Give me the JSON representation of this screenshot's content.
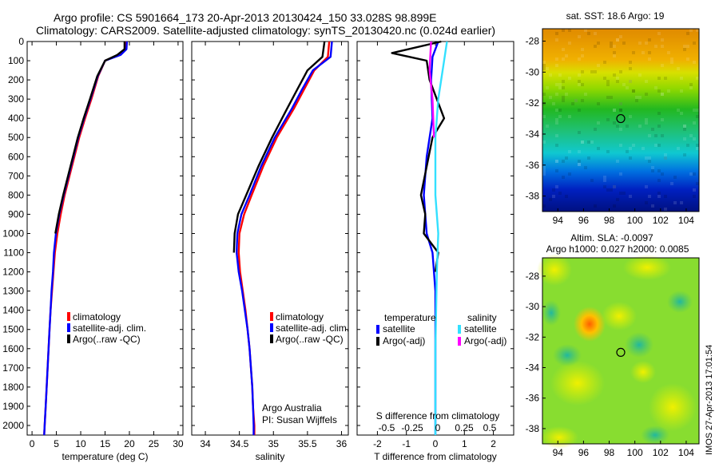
{
  "title": {
    "line1": "Argo profile: CS 5901664_173 20-Apr-2013 20130424_150 33.028S 98.899E",
    "line2": "Climatology: CARS2009. Satellite-adjusted climatology: synTS_20130420.nc (0.024d earlier)"
  },
  "colors": {
    "climatology": "#ff0000",
    "satellite": "#0000ff",
    "argo": "#000000",
    "salinity_satellite": "#33e0ff",
    "salinity_argo": "#ff00ff"
  },
  "chart_data": [
    {
      "type": "line",
      "xlabel": "temperature (deg C)",
      "ylabel": "",
      "xlim": [
        -1,
        31
      ],
      "ylim": [
        2050,
        0
      ],
      "y_ticks": [
        0,
        100,
        200,
        300,
        400,
        500,
        600,
        700,
        800,
        900,
        1000,
        1100,
        1200,
        1300,
        1400,
        1500,
        1600,
        1700,
        1800,
        1900,
        2000
      ],
      "x_ticks": [
        0,
        5,
        10,
        15,
        20,
        25,
        30
      ],
      "legend": [
        "climatology",
        "satellite-adj. clim.",
        "Argo(..raw -QC)"
      ],
      "legend_position": "lower-right",
      "series": [
        {
          "name": "climatology",
          "color": "#ff0000",
          "points": [
            [
              19.4,
              0
            ],
            [
              19.3,
              40
            ],
            [
              18.0,
              70
            ],
            [
              15.0,
              100
            ],
            [
              13.6,
              180
            ],
            [
              12.2,
              300
            ],
            [
              10.9,
              400
            ],
            [
              9.7,
              500
            ],
            [
              8.7,
              600
            ],
            [
              7.7,
              700
            ],
            [
              6.7,
              800
            ],
            [
              5.9,
              900
            ],
            [
              5.2,
              1000
            ],
            [
              4.7,
              1100
            ],
            [
              4.4,
              1200
            ],
            [
              4.1,
              1300
            ],
            [
              3.8,
              1400
            ],
            [
              3.6,
              1500
            ],
            [
              3.4,
              1600
            ],
            [
              3.2,
              1700
            ],
            [
              3.0,
              1800
            ],
            [
              2.8,
              1900
            ],
            [
              2.6,
              2000
            ],
            [
              2.5,
              2050
            ]
          ]
        },
        {
          "name": "satellite-adj. clim.",
          "color": "#0000ff",
          "points": [
            [
              19.5,
              0
            ],
            [
              19.4,
              40
            ],
            [
              18.2,
              70
            ],
            [
              15.0,
              100
            ],
            [
              13.5,
              180
            ],
            [
              12.0,
              300
            ],
            [
              10.7,
              400
            ],
            [
              9.5,
              500
            ],
            [
              8.5,
              600
            ],
            [
              7.5,
              700
            ],
            [
              6.5,
              800
            ],
            [
              5.6,
              900
            ],
            [
              4.9,
              1000
            ],
            [
              4.5,
              1100
            ],
            [
              4.3,
              1200
            ],
            [
              4.0,
              1300
            ],
            [
              3.8,
              1400
            ],
            [
              3.6,
              1500
            ],
            [
              3.4,
              1600
            ],
            [
              3.2,
              1700
            ],
            [
              3.0,
              1800
            ],
            [
              2.8,
              1900
            ],
            [
              2.6,
              2000
            ],
            [
              2.5,
              2050
            ]
          ]
        },
        {
          "name": "Argo(..raw -QC)",
          "color": "#000000",
          "points": [
            [
              19.0,
              0
            ],
            [
              19.0,
              40
            ],
            [
              17.5,
              70
            ],
            [
              15.0,
              100
            ],
            [
              13.4,
              180
            ],
            [
              11.9,
              300
            ],
            [
              10.6,
              400
            ],
            [
              9.4,
              500
            ],
            [
              8.4,
              600
            ],
            [
              7.4,
              700
            ],
            [
              6.4,
              800
            ],
            [
              5.5,
              900
            ],
            [
              4.8,
              1000
            ]
          ]
        }
      ]
    },
    {
      "type": "line",
      "xlabel": "salinity",
      "ylabel": "",
      "xlim": [
        33.8,
        36.1
      ],
      "ylim": [
        2050,
        0
      ],
      "x_ticks": [
        34,
        34.5,
        35,
        35.5,
        36
      ],
      "legend": [
        "climatology",
        "satellite-adj. clim.",
        "Argo(..raw -QC)"
      ],
      "legend_position": "lower-right",
      "annotations": [
        "Argo Australia",
        "PI: Susan Wijffels"
      ],
      "series": [
        {
          "name": "climatology",
          "color": "#ff0000",
          "points": [
            [
              35.82,
              0
            ],
            [
              35.8,
              80
            ],
            [
              35.6,
              150
            ],
            [
              35.45,
              250
            ],
            [
              35.3,
              350
            ],
            [
              35.05,
              500
            ],
            [
              34.85,
              650
            ],
            [
              34.68,
              800
            ],
            [
              34.57,
              900
            ],
            [
              34.5,
              1000
            ],
            [
              34.49,
              1100
            ],
            [
              34.51,
              1200
            ],
            [
              34.55,
              1300
            ],
            [
              34.59,
              1400
            ],
            [
              34.62,
              1500
            ],
            [
              34.65,
              1600
            ],
            [
              34.67,
              1700
            ],
            [
              34.69,
              1800
            ],
            [
              34.7,
              1900
            ],
            [
              34.72,
              2000
            ],
            [
              34.72,
              2050
            ]
          ]
        },
        {
          "name": "satellite-adj. clim.",
          "color": "#0000ff",
          "points": [
            [
              35.86,
              0
            ],
            [
              35.84,
              80
            ],
            [
              35.58,
              150
            ],
            [
              35.42,
              250
            ],
            [
              35.27,
              350
            ],
            [
              35.02,
              500
            ],
            [
              34.82,
              650
            ],
            [
              34.65,
              800
            ],
            [
              34.53,
              900
            ],
            [
              34.47,
              1000
            ],
            [
              34.46,
              1100
            ],
            [
              34.49,
              1200
            ],
            [
              34.54,
              1300
            ],
            [
              34.58,
              1400
            ],
            [
              34.62,
              1500
            ],
            [
              34.65,
              1600
            ],
            [
              34.67,
              1700
            ],
            [
              34.69,
              1800
            ],
            [
              34.7,
              1900
            ],
            [
              34.71,
              2000
            ],
            [
              34.71,
              2050
            ]
          ]
        },
        {
          "name": "Argo(..raw -QC)",
          "color": "#000000",
          "points": [
            [
              35.75,
              0
            ],
            [
              35.72,
              80
            ],
            [
              35.5,
              150
            ],
            [
              35.35,
              250
            ],
            [
              35.2,
              350
            ],
            [
              34.98,
              500
            ],
            [
              34.78,
              650
            ],
            [
              34.6,
              800
            ],
            [
              34.48,
              900
            ],
            [
              34.43,
              1000
            ],
            [
              34.42,
              1100
            ]
          ]
        }
      ]
    },
    {
      "type": "line",
      "xlabel": "T difference from climatology",
      "x2label": "S difference from climatology",
      "xlim": [
        -2.7,
        2.7
      ],
      "ylim": [
        2050,
        0
      ],
      "x_ticks": [
        -2,
        -1,
        0,
        1,
        2
      ],
      "x2_ticks": [
        "-0.5",
        "-0.25",
        "0",
        "0.25",
        "0.5"
      ],
      "legend_titles": [
        "temperature",
        "salinity"
      ],
      "legend": [
        "satellite",
        "Argo(-adj)",
        "satellite",
        "Argo(-adj)"
      ],
      "legend_position": "lower-center",
      "series": [
        {
          "name": "satellite",
          "color": "#0000ff",
          "points": [
            [
              0.1,
              0
            ],
            [
              -0.1,
              80
            ],
            [
              -0.15,
              200
            ],
            [
              -0.1,
              400
            ],
            [
              -0.3,
              600
            ],
            [
              -0.4,
              800
            ],
            [
              -0.3,
              1000
            ],
            [
              -0.1,
              1100
            ],
            [
              0,
              1300
            ],
            [
              0,
              1600
            ],
            [
              0,
              2050
            ]
          ]
        },
        {
          "name": "Argo(-adj)",
          "color": "#000000",
          "points": [
            [
              0.2,
              0
            ],
            [
              -1.5,
              60
            ],
            [
              -0.3,
              100
            ],
            [
              -0.2,
              200
            ],
            [
              0.3,
              400
            ],
            [
              -0.1,
              500
            ],
            [
              -0.5,
              800
            ],
            [
              -0.35,
              900
            ],
            [
              -0.4,
              1000
            ],
            [
              0.1,
              1100
            ],
            [
              0,
              1200
            ]
          ]
        },
        {
          "name": "satellite",
          "color": "#33e0ff",
          "points": [
            [
              0.4,
              0
            ],
            [
              0.3,
              100
            ],
            [
              0.1,
              300
            ],
            [
              0,
              500
            ],
            [
              0,
              800
            ],
            [
              0.1,
              1000
            ],
            [
              0.05,
              1200
            ],
            [
              0,
              1600
            ],
            [
              0,
              2050
            ]
          ]
        },
        {
          "name": "Argo(-adj)",
          "color": "#ff00ff",
          "points": [
            [
              -0.15,
              0
            ],
            [
              -0.2,
              150
            ],
            [
              -0.1,
              300
            ],
            [
              -0.05,
              500
            ]
          ]
        }
      ]
    },
    {
      "type": "heatmap",
      "title": "sat. SST: 18.6  Argo: 19",
      "xlim": [
        92.8,
        105
      ],
      "ylim": [
        -39,
        -27.2
      ],
      "x_ticks": [
        94,
        96,
        98,
        100,
        102,
        104
      ],
      "y_ticks": [
        -28,
        -30,
        -32,
        -34,
        -36,
        -38
      ],
      "marker": {
        "lon": 98.9,
        "lat": -33.0
      }
    },
    {
      "type": "heatmap",
      "title": "Altim. SLA: -0.0097",
      "subtitle": "Argo h1000: 0.027 h2000: 0.0085",
      "xlim": [
        92.8,
        105
      ],
      "ylim": [
        -39,
        -26.8
      ],
      "x_ticks": [
        94,
        96,
        98,
        100,
        102,
        104
      ],
      "y_ticks": [
        -28,
        -30,
        -32,
        -34,
        -36,
        -38
      ],
      "marker": {
        "lon": 98.9,
        "lat": -33.0
      }
    }
  ],
  "side_label": "IMOS 27-Apr-2013 17:01:54"
}
